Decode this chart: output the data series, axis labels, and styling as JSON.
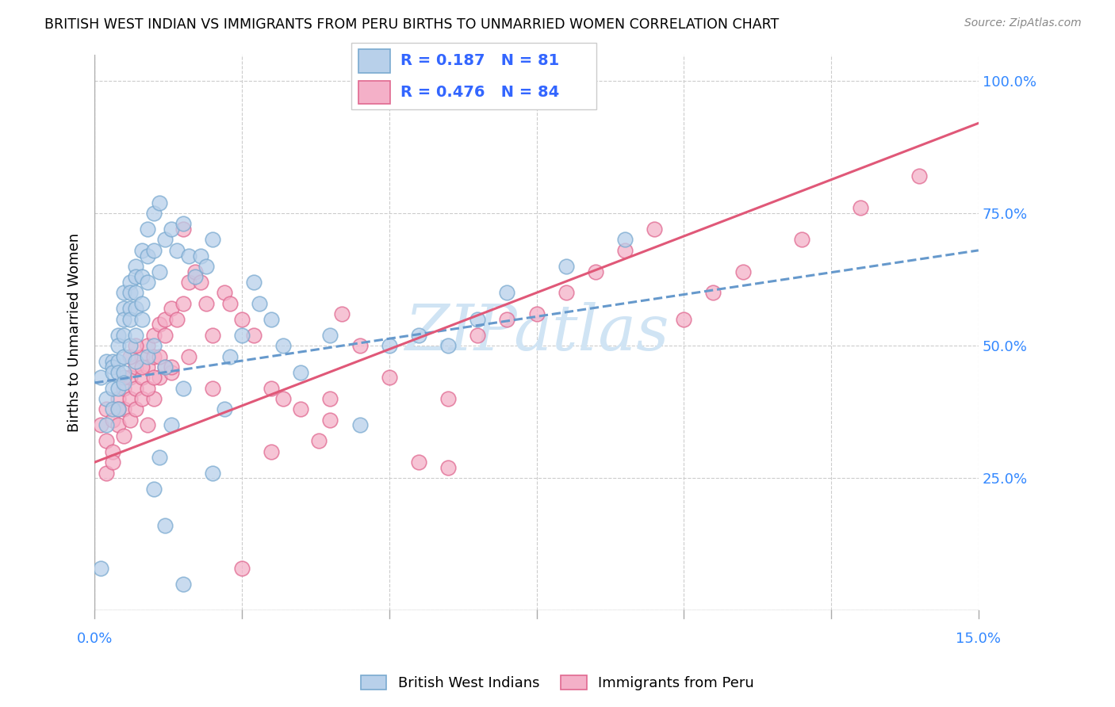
{
  "title": "BRITISH WEST INDIAN VS IMMIGRANTS FROM PERU BIRTHS TO UNMARRIED WOMEN CORRELATION CHART",
  "source": "Source: ZipAtlas.com",
  "ylabel": "Births to Unmarried Women",
  "xmin": 0.0,
  "xmax": 0.15,
  "ymin": 0.0,
  "ymax": 1.05,
  "yticks": [
    0.0,
    0.25,
    0.5,
    0.75,
    1.0
  ],
  "ytick_labels": [
    "",
    "25.0%",
    "50.0%",
    "75.0%",
    "100.0%"
  ],
  "xtick_positions": [
    0.0,
    0.025,
    0.05,
    0.075,
    0.1,
    0.125,
    0.15
  ],
  "xtick_labels": [
    "0.0%",
    "",
    "",
    "",
    "",
    "",
    "15.0%"
  ],
  "legend_blue_label": "British West Indians",
  "legend_pink_label": "Immigrants from Peru",
  "R_blue": 0.187,
  "N_blue": 81,
  "R_pink": 0.476,
  "N_pink": 84,
  "blue_fill": "#b8d0ea",
  "blue_edge": "#7aaad0",
  "pink_fill": "#f4b0c8",
  "pink_edge": "#e06890",
  "blue_line": "#6699cc",
  "pink_line": "#e05878",
  "watermark_color": "#d0e4f4",
  "blue_line_style": "--",
  "pink_line_style": "-",
  "blue_scatter_x": [
    0.001,
    0.001,
    0.002,
    0.002,
    0.002,
    0.003,
    0.003,
    0.003,
    0.003,
    0.003,
    0.004,
    0.004,
    0.004,
    0.004,
    0.004,
    0.004,
    0.005,
    0.005,
    0.005,
    0.005,
    0.005,
    0.005,
    0.005,
    0.006,
    0.006,
    0.006,
    0.006,
    0.006,
    0.007,
    0.007,
    0.007,
    0.007,
    0.007,
    0.007,
    0.008,
    0.008,
    0.008,
    0.008,
    0.009,
    0.009,
    0.009,
    0.009,
    0.01,
    0.01,
    0.01,
    0.011,
    0.011,
    0.011,
    0.012,
    0.012,
    0.013,
    0.013,
    0.014,
    0.015,
    0.015,
    0.016,
    0.017,
    0.018,
    0.019,
    0.02,
    0.02,
    0.022,
    0.023,
    0.025,
    0.027,
    0.028,
    0.03,
    0.032,
    0.035,
    0.04,
    0.045,
    0.05,
    0.055,
    0.06,
    0.065,
    0.07,
    0.08,
    0.09,
    0.01,
    0.012,
    0.015
  ],
  "blue_scatter_y": [
    0.44,
    0.08,
    0.47,
    0.4,
    0.35,
    0.47,
    0.46,
    0.45,
    0.42,
    0.38,
    0.52,
    0.5,
    0.47,
    0.45,
    0.42,
    0.38,
    0.6,
    0.57,
    0.55,
    0.52,
    0.48,
    0.45,
    0.43,
    0.62,
    0.6,
    0.57,
    0.55,
    0.5,
    0.65,
    0.63,
    0.6,
    0.57,
    0.52,
    0.47,
    0.68,
    0.63,
    0.58,
    0.55,
    0.72,
    0.67,
    0.62,
    0.48,
    0.75,
    0.68,
    0.5,
    0.77,
    0.64,
    0.29,
    0.7,
    0.46,
    0.72,
    0.35,
    0.68,
    0.73,
    0.42,
    0.67,
    0.63,
    0.67,
    0.65,
    0.7,
    0.26,
    0.38,
    0.48,
    0.52,
    0.62,
    0.58,
    0.55,
    0.5,
    0.45,
    0.52,
    0.35,
    0.5,
    0.52,
    0.5,
    0.55,
    0.6,
    0.65,
    0.7,
    0.23,
    0.16,
    0.05
  ],
  "pink_scatter_x": [
    0.001,
    0.002,
    0.002,
    0.003,
    0.003,
    0.004,
    0.004,
    0.005,
    0.005,
    0.005,
    0.006,
    0.006,
    0.006,
    0.007,
    0.007,
    0.007,
    0.008,
    0.008,
    0.008,
    0.009,
    0.009,
    0.009,
    0.01,
    0.01,
    0.01,
    0.011,
    0.011,
    0.012,
    0.012,
    0.013,
    0.013,
    0.014,
    0.015,
    0.015,
    0.016,
    0.016,
    0.017,
    0.018,
    0.019,
    0.02,
    0.02,
    0.022,
    0.023,
    0.025,
    0.027,
    0.03,
    0.032,
    0.035,
    0.038,
    0.04,
    0.042,
    0.045,
    0.05,
    0.055,
    0.06,
    0.065,
    0.07,
    0.075,
    0.08,
    0.085,
    0.09,
    0.095,
    0.1,
    0.105,
    0.11,
    0.12,
    0.13,
    0.14,
    0.002,
    0.003,
    0.004,
    0.005,
    0.006,
    0.007,
    0.008,
    0.009,
    0.01,
    0.011,
    0.012,
    0.013,
    0.025,
    0.03,
    0.04,
    0.06
  ],
  "pink_scatter_y": [
    0.35,
    0.38,
    0.32,
    0.36,
    0.3,
    0.4,
    0.35,
    0.42,
    0.38,
    0.33,
    0.44,
    0.4,
    0.36,
    0.46,
    0.42,
    0.38,
    0.48,
    0.44,
    0.4,
    0.5,
    0.46,
    0.35,
    0.52,
    0.48,
    0.4,
    0.54,
    0.44,
    0.55,
    0.46,
    0.57,
    0.45,
    0.55,
    0.72,
    0.58,
    0.62,
    0.48,
    0.64,
    0.62,
    0.58,
    0.52,
    0.42,
    0.6,
    0.58,
    0.55,
    0.52,
    0.42,
    0.4,
    0.38,
    0.32,
    0.4,
    0.56,
    0.5,
    0.44,
    0.28,
    0.4,
    0.52,
    0.55,
    0.56,
    0.6,
    0.64,
    0.68,
    0.72,
    0.55,
    0.6,
    0.64,
    0.7,
    0.76,
    0.82,
    0.26,
    0.28,
    0.38,
    0.44,
    0.48,
    0.5,
    0.46,
    0.42,
    0.44,
    0.48,
    0.52,
    0.46,
    0.08,
    0.3,
    0.36,
    0.27
  ]
}
